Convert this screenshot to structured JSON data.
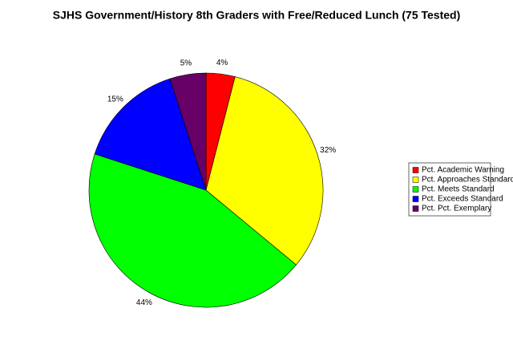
{
  "chart_data": {
    "type": "pie",
    "title": "SJHS Government/History 8th Graders with Free/Reduced Lunch (75 Tested)",
    "categories": [
      "Pct. Academic Warning",
      "Pct. Approaches Standard",
      "Pct. Meets Standard",
      "Pct. Exceeds Standard",
      "Pct. Pct. Exemplary"
    ],
    "values": [
      4,
      32,
      44,
      15,
      5
    ],
    "value_labels": [
      "4%",
      "32%",
      "44%",
      "15%",
      "5%"
    ],
    "colors": [
      "#ff0000",
      "#ffff00",
      "#00ff00",
      "#0000ff",
      "#660066"
    ],
    "legend": "right"
  }
}
